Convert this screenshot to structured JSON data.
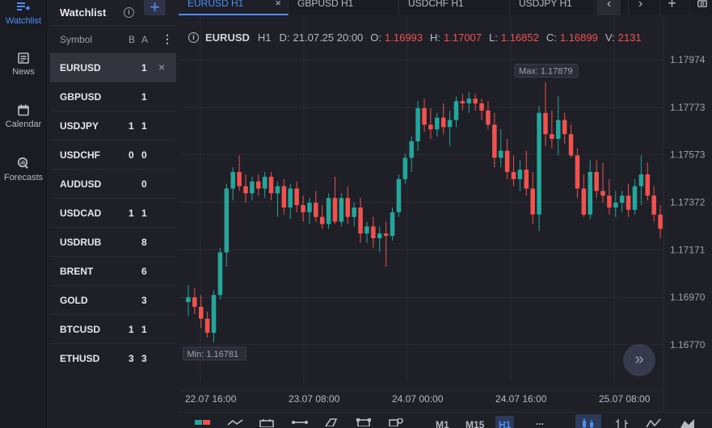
{
  "nav": {
    "items": [
      {
        "label": "Watchlist",
        "icon": "watchlist-icon",
        "active": true
      },
      {
        "label": "News",
        "icon": "news-icon",
        "active": false
      },
      {
        "label": "Calendar",
        "icon": "calendar-icon",
        "active": false
      },
      {
        "label": "Forecasts",
        "icon": "forecasts-icon",
        "active": false
      }
    ]
  },
  "watchlist": {
    "title": "Watchlist",
    "info_glyph": "i",
    "add_glyph": "+",
    "columns": {
      "symbol": "Symbol",
      "bid": "B",
      "ask": "A",
      "menu": "⋮"
    },
    "close_glyph": "×",
    "rows": [
      {
        "symbol": "EURUSD",
        "b": "",
        "a": "1",
        "selected": true
      },
      {
        "symbol": "GBPUSD",
        "b": "",
        "a": "1"
      },
      {
        "symbol": "USDJPY",
        "b": "1",
        "a": "1"
      },
      {
        "symbol": "USDCHF",
        "b": "0",
        "a": "0"
      },
      {
        "symbol": "AUDUSD",
        "b": "",
        "a": "0"
      },
      {
        "symbol": "USDCAD",
        "b": "1",
        "a": "1"
      },
      {
        "symbol": "USDRUB",
        "b": "",
        "a": "8"
      },
      {
        "symbol": "BRENT",
        "b": "",
        "a": "6"
      },
      {
        "symbol": "GOLD",
        "b": "",
        "a": "3"
      },
      {
        "symbol": "BTCUSD",
        "b": "1",
        "a": "1"
      },
      {
        "symbol": "ETHUSD",
        "b": "3",
        "a": "3"
      }
    ]
  },
  "tabs": [
    {
      "label": "EURUSD H1",
      "active": true
    },
    {
      "label": "GBPUSD H1",
      "active": false
    },
    {
      "label": "USDCHF H1",
      "active": false
    },
    {
      "label": "USDJPY H1",
      "active": false
    }
  ],
  "tab_close_glyph": "×",
  "tab_buttons": {
    "prev": "‹",
    "next": "›",
    "add": "+"
  },
  "infobar": {
    "info_glyph": "i",
    "symbol": "EURUSD",
    "timeframe": "H1",
    "date_label": "D:",
    "date": "21.07.25 20:00",
    "open_label": "O:",
    "open": "1.16993",
    "high_label": "H:",
    "high": "1.17007",
    "low_label": "L:",
    "low": "1.16852",
    "close_label": "C:",
    "close": "1.16899",
    "volume_label": "V:",
    "volume": "2131"
  },
  "scroll_glyph": "»",
  "colors": {
    "bull": "#26a69a",
    "bear": "#ef5350",
    "accent": "#4e8ef7",
    "grid": "#2a2b33"
  },
  "bottom": {
    "timeframes": [
      {
        "label": "M1",
        "active": false
      },
      {
        "label": "M15",
        "active": false
      },
      {
        "label": "H1",
        "active": true
      }
    ],
    "more": "..."
  },
  "chart_data": {
    "type": "candlestick",
    "y_ticks": [
      "1.17974",
      "1.17773",
      "1.17573",
      "1.17372",
      "1.17171",
      "1.16970",
      "1.16770"
    ],
    "ylim": [
      1.1666,
      1.1806
    ],
    "x_ticks": [
      "22.07 16:00",
      "23.07 08:00",
      "24.07 00:00",
      "24.07 16:00",
      "25.07 08:00"
    ],
    "max_label": "Max: 1.17879",
    "min_label": "Min: 1.16781",
    "ohlc": [
      [
        1.1695,
        1.1702,
        1.1689,
        1.1697
      ],
      [
        1.1697,
        1.1701,
        1.169,
        1.1693
      ],
      [
        1.1693,
        1.1698,
        1.1684,
        1.1688
      ],
      [
        1.1688,
        1.1691,
        1.168,
        1.1682
      ],
      [
        1.1682,
        1.17,
        1.1678,
        1.1698
      ],
      [
        1.1698,
        1.1718,
        1.1696,
        1.1716
      ],
      [
        1.1716,
        1.1745,
        1.171,
        1.1743
      ],
      [
        1.1743,
        1.1752,
        1.1738,
        1.175
      ],
      [
        1.175,
        1.1757,
        1.1742,
        1.1744
      ],
      [
        1.1744,
        1.1749,
        1.1737,
        1.1741
      ],
      [
        1.1741,
        1.1748,
        1.1738,
        1.1746
      ],
      [
        1.1746,
        1.1749,
        1.174,
        1.1743
      ],
      [
        1.1743,
        1.175,
        1.1739,
        1.1748
      ],
      [
        1.1748,
        1.175,
        1.1738,
        1.1741
      ],
      [
        1.1741,
        1.1746,
        1.1731,
        1.1744
      ],
      [
        1.1744,
        1.1747,
        1.1732,
        1.1735
      ],
      [
        1.1735,
        1.1745,
        1.173,
        1.1743
      ],
      [
        1.1743,
        1.1746,
        1.1733,
        1.1736
      ],
      [
        1.1736,
        1.174,
        1.1729,
        1.1733
      ],
      [
        1.1733,
        1.1739,
        1.1728,
        1.1737
      ],
      [
        1.1737,
        1.1742,
        1.1729,
        1.1731
      ],
      [
        1.1731,
        1.1736,
        1.1726,
        1.1728
      ],
      [
        1.1728,
        1.1741,
        1.1726,
        1.1739
      ],
      [
        1.1739,
        1.1748,
        1.1728,
        1.1729
      ],
      [
        1.1729,
        1.1741,
        1.1727,
        1.1739
      ],
      [
        1.1739,
        1.1744,
        1.1728,
        1.1731
      ],
      [
        1.1731,
        1.1737,
        1.1727,
        1.1735
      ],
      [
        1.1735,
        1.1739,
        1.172,
        1.1724
      ],
      [
        1.1724,
        1.1729,
        1.172,
        1.1727
      ],
      [
        1.1727,
        1.1731,
        1.1718,
        1.1722
      ],
      [
        1.1722,
        1.1727,
        1.1716,
        1.1724
      ],
      [
        1.1724,
        1.1729,
        1.171,
        1.1723
      ],
      [
        1.1723,
        1.1735,
        1.1721,
        1.1733
      ],
      [
        1.1733,
        1.1749,
        1.1731,
        1.1747
      ],
      [
        1.1747,
        1.1758,
        1.1745,
        1.1756
      ],
      [
        1.1756,
        1.1765,
        1.175,
        1.1763
      ],
      [
        1.1763,
        1.178,
        1.1759,
        1.1777
      ],
      [
        1.1777,
        1.1781,
        1.1767,
        1.177
      ],
      [
        1.177,
        1.1777,
        1.1764,
        1.1768
      ],
      [
        1.1768,
        1.1775,
        1.1765,
        1.1773
      ],
      [
        1.1773,
        1.1779,
        1.1766,
        1.1769
      ],
      [
        1.1769,
        1.1776,
        1.1761,
        1.1772
      ],
      [
        1.1772,
        1.1782,
        1.1769,
        1.178
      ],
      [
        1.178,
        1.1783,
        1.1776,
        1.1779
      ],
      [
        1.1779,
        1.1784,
        1.1775,
        1.1781
      ],
      [
        1.1781,
        1.1783,
        1.1776,
        1.1779
      ],
      [
        1.1779,
        1.1781,
        1.1772,
        1.1776
      ],
      [
        1.1776,
        1.178,
        1.1768,
        1.177
      ],
      [
        1.177,
        1.1775,
        1.1752,
        1.1756
      ],
      [
        1.1756,
        1.1768,
        1.1752,
        1.1759
      ],
      [
        1.1759,
        1.1764,
        1.1747,
        1.175
      ],
      [
        1.175,
        1.1757,
        1.1744,
        1.1747
      ],
      [
        1.1747,
        1.1755,
        1.1742,
        1.1751
      ],
      [
        1.1751,
        1.1759,
        1.174,
        1.1743
      ],
      [
        1.1743,
        1.175,
        1.1728,
        1.1732
      ],
      [
        1.1732,
        1.1778,
        1.1725,
        1.1775
      ],
      [
        1.1775,
        1.1788,
        1.1761,
        1.1766
      ],
      [
        1.1766,
        1.1776,
        1.176,
        1.1764
      ],
      [
        1.1764,
        1.1782,
        1.1757,
        1.1772
      ],
      [
        1.1772,
        1.1775,
        1.1762,
        1.1766
      ],
      [
        1.1766,
        1.177,
        1.1756,
        1.1757
      ],
      [
        1.1757,
        1.176,
        1.1739,
        1.1743
      ],
      [
        1.1743,
        1.1749,
        1.1731,
        1.1732
      ],
      [
        1.1732,
        1.1755,
        1.173,
        1.175
      ],
      [
        1.175,
        1.1755,
        1.1739,
        1.1742
      ],
      [
        1.1742,
        1.1754,
        1.1737,
        1.174
      ],
      [
        1.174,
        1.1747,
        1.1732,
        1.1735
      ],
      [
        1.1735,
        1.1742,
        1.1731,
        1.1737
      ],
      [
        1.1737,
        1.1742,
        1.1733,
        1.174
      ],
      [
        1.174,
        1.1745,
        1.1731,
        1.1734
      ],
      [
        1.1734,
        1.1747,
        1.1732,
        1.1744
      ],
      [
        1.1744,
        1.1757,
        1.1736,
        1.1749
      ],
      [
        1.1749,
        1.1754,
        1.1738,
        1.174
      ],
      [
        1.174,
        1.1744,
        1.1729,
        1.1732
      ],
      [
        1.1732,
        1.1736,
        1.1722,
        1.1726
      ]
    ]
  }
}
